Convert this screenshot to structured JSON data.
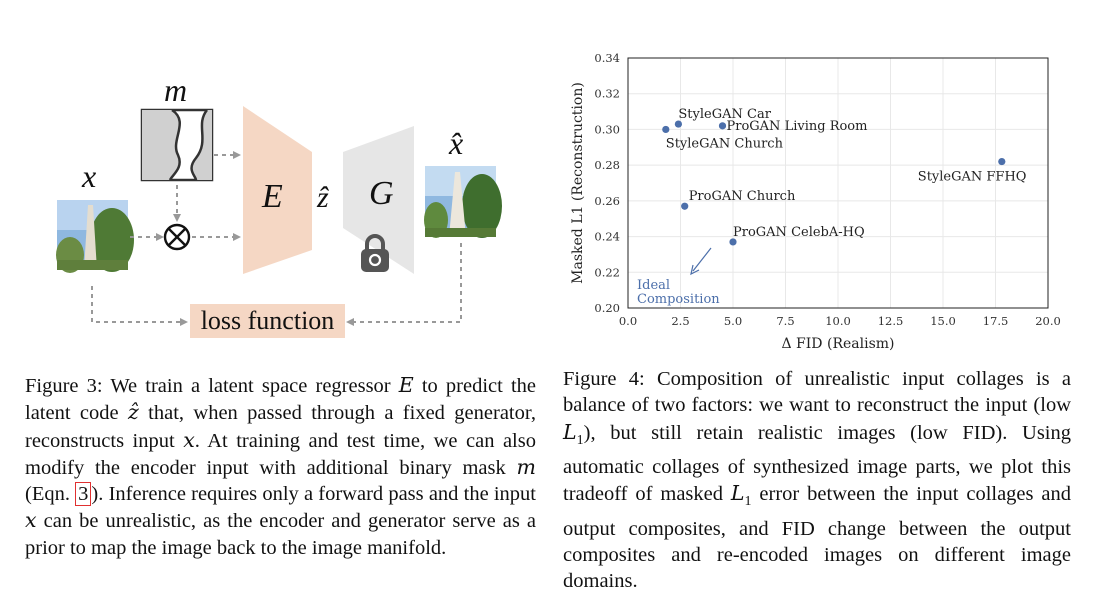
{
  "figure3": {
    "labels": {
      "x": "x",
      "m": "m",
      "x_hat": "x̂",
      "encoder": "E",
      "generator": "G",
      "z_hat": "ẑ",
      "loss": "loss function",
      "multiply_symbol": "⊗"
    },
    "caption": {
      "label": "Figure 3:",
      "part1": " We train a latent space regressor ",
      "var_E": "E",
      "part2": " to predict the latent code ",
      "var_z": "ẑ",
      "part3": " that, when passed through a fixed generator, reconstructs input ",
      "var_x1": "x",
      "part4": ". At training and test time, we can also modify the encoder input with additional binary mask ",
      "var_m": "m",
      "part5": " (Eqn. ",
      "eqn_ref": "3",
      "part6": "). Inference requires only a forward pass and the input ",
      "var_x2": "x",
      "part7": " can be unrealistic, as the encoder and generator serve as a prior to map the image back to the image manifold."
    },
    "icons": [
      "mask-image",
      "church-photo-icon",
      "lock-icon"
    ],
    "colors": {
      "encoder": "#f5d7c4",
      "generator": "#e6e6e6",
      "loss_box": "#f5d7c4",
      "arrows": "#999999"
    }
  },
  "figure4": {
    "chart_data": {
      "type": "scatter",
      "xlabel": "Δ FID (Realism)",
      "ylabel": "Masked L1 (Reconstruction)",
      "xlim": [
        0,
        20
      ],
      "ylim": [
        0.2,
        0.34
      ],
      "xticks": [
        "0.0",
        "2.5",
        "5.0",
        "7.5",
        "10.0",
        "12.5",
        "15.0",
        "17.5",
        "20.0"
      ],
      "yticks": [
        "0.20",
        "0.22",
        "0.24",
        "0.26",
        "0.28",
        "0.30",
        "0.32",
        "0.34"
      ],
      "grid": true,
      "points": [
        {
          "label": "StyleGAN Car",
          "x": 2.4,
          "y": 0.303
        },
        {
          "label": "StyleGAN Church",
          "x": 1.8,
          "y": 0.3
        },
        {
          "label": "ProGAN Living Room",
          "x": 4.5,
          "y": 0.302
        },
        {
          "label": "StyleGAN FFHQ",
          "x": 17.8,
          "y": 0.282
        },
        {
          "label": "ProGAN Church",
          "x": 2.7,
          "y": 0.257
        },
        {
          "label": "ProGAN CelebA-HQ",
          "x": 5.0,
          "y": 0.237
        }
      ],
      "annotation": {
        "line1": "Ideal",
        "line2": "Composition"
      },
      "point_color": "#4c6faa",
      "annotation_color": "#4c6faa"
    },
    "caption": {
      "label": "Figure 4:",
      "part1": " Composition of unrealistic input collages is a balance of two factors: we want to reconstruct the input (low ",
      "var_L1a": "L",
      "sub_1a": "1",
      "part2": "), but still retain realistic images (low FID). Using automatic collages of synthesized image parts, we plot this tradeoff of masked ",
      "var_L1b": "L",
      "sub_1b": "1",
      "part3": " error between the input collages and output composites, and FID change between the output composites and re-encoded images on different image domains."
    }
  }
}
